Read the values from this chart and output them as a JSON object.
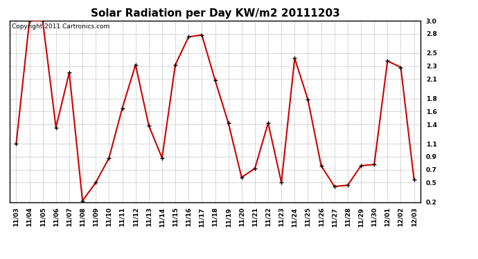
{
  "title": "Solar Radiation per Day KW/m2 20111203",
  "copyright": "Copyright 2011 Cartronics.com",
  "dates": [
    "11/03",
    "11/04",
    "11/05",
    "11/06",
    "11/07",
    "11/08",
    "11/09",
    "11/10",
    "11/11",
    "11/12",
    "11/13",
    "11/14",
    "11/15",
    "11/16",
    "11/17",
    "11/18",
    "11/19",
    "11/20",
    "11/21",
    "11/22",
    "11/23",
    "11/24",
    "11/25",
    "11/26",
    "11/27",
    "11/28",
    "11/29",
    "11/30",
    "12/01",
    "12/02",
    "12/03"
  ],
  "values": [
    1.1,
    3.0,
    3.0,
    1.35,
    2.2,
    0.22,
    0.5,
    0.88,
    1.65,
    2.32,
    1.38,
    0.88,
    2.32,
    2.75,
    2.78,
    2.08,
    1.42,
    0.58,
    0.72,
    1.42,
    0.5,
    2.42,
    1.78,
    0.76,
    0.44,
    0.46,
    0.76,
    0.78,
    2.38,
    2.28,
    0.55
  ],
  "line_color": "#cc0000",
  "marker_color": "#000000",
  "bg_color": "#ffffff",
  "plot_bg_color": "#ffffff",
  "grid_color": "#b0b0b0",
  "ylim_min": 0.2,
  "ylim_max": 3.0,
  "yticks": [
    0.2,
    0.5,
    0.7,
    0.9,
    1.1,
    1.4,
    1.6,
    1.8,
    2.1,
    2.3,
    2.5,
    2.8,
    3.0
  ],
  "title_fontsize": 11,
  "tick_fontsize": 6.5,
  "copyright_fontsize": 6.5
}
